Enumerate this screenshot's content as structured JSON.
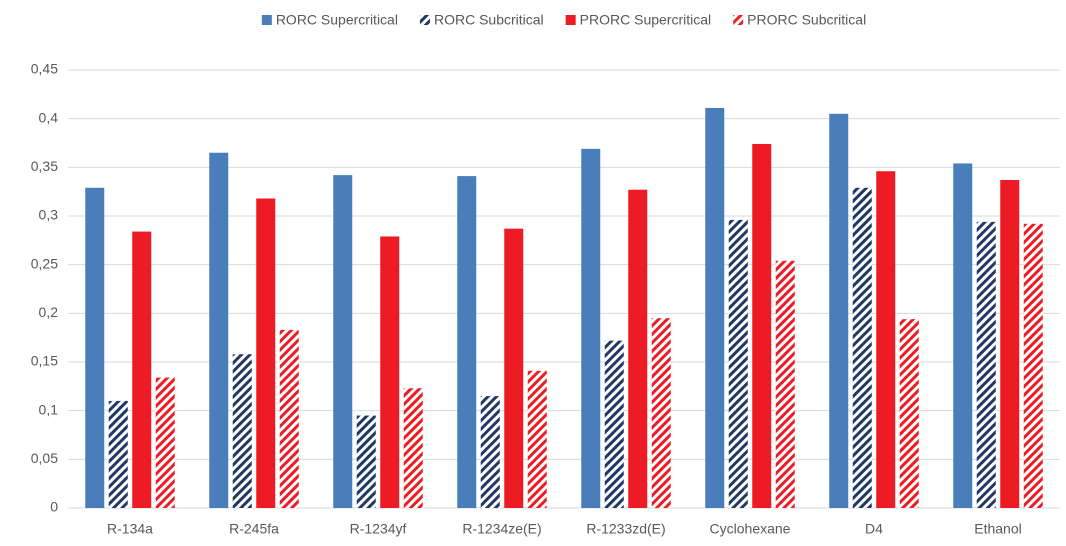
{
  "chart_data": {
    "type": "bar",
    "categories": [
      "R-134a",
      "R-245fa",
      "R-1234yf",
      "R-1234ze(E)",
      "R-1233zd(E)",
      "Cyclohexane",
      "D4",
      "Ethanol"
    ],
    "series": [
      {
        "name": "RORC Supercritical",
        "color": "#4a7ebb",
        "hatch": false,
        "values": [
          0.329,
          0.365,
          0.342,
          0.341,
          0.369,
          0.411,
          0.405,
          0.354
        ]
      },
      {
        "name": "RORC Subcritical",
        "color": "#1f3864",
        "hatch": true,
        "values": [
          0.11,
          0.158,
          0.095,
          0.115,
          0.172,
          0.296,
          0.329,
          0.294
        ]
      },
      {
        "name": "PRORC Supercritical",
        "color": "#ed1c24",
        "hatch": false,
        "values": [
          0.284,
          0.318,
          0.279,
          0.287,
          0.327,
          0.374,
          0.346,
          0.337
        ]
      },
      {
        "name": "PRORC Subcritical",
        "color": "#ed1c24",
        "hatch": true,
        "values": [
          0.134,
          0.183,
          0.123,
          0.141,
          0.195,
          0.254,
          0.194,
          0.292
        ]
      }
    ],
    "ylim": [
      0,
      0.45
    ],
    "yticks": [
      0,
      {
        "value": 0.05,
        "label": "0,05"
      },
      {
        "value": 0.1,
        "label": "0,1"
      },
      {
        "value": 0.15,
        "label": "0,15"
      },
      {
        "value": 0.2,
        "label": "0,2"
      },
      {
        "value": 0.25,
        "label": "0,25"
      },
      {
        "value": 0.3,
        "label": "0,3"
      },
      {
        "value": 0.35,
        "label": "0,35"
      },
      {
        "value": 0.4,
        "label": "0,4"
      },
      {
        "value": 0.45,
        "label": "0,45"
      }
    ],
    "grid": true,
    "legend": "top"
  }
}
